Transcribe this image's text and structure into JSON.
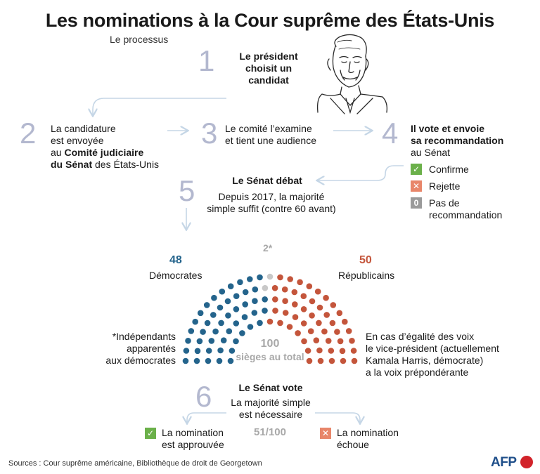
{
  "title": "Les nominations à la Cour suprême des États-Unis",
  "subtitle": "Le processus",
  "steps": {
    "s1": {
      "num": "1",
      "text": "Le président choisit un candidat"
    },
    "s2": {
      "num": "2",
      "line1": "La candidature",
      "line2": "est envoyée",
      "line3_pre": "au ",
      "line3_bold": "Comité judiciaire",
      "line4_bold": "du Sénat",
      "line4_post": " des États-Unis"
    },
    "s3": {
      "num": "3",
      "line1": "Le comité l’examine",
      "line2": "et tient une audience"
    },
    "s4": {
      "num": "4",
      "line1": "Il vote et envoie",
      "line2": "sa recommandation",
      "line3": "au Sénat",
      "options": [
        {
          "icon": "check-icon",
          "symbol": "✓",
          "color": "#6bb04a",
          "label": "Confirme"
        },
        {
          "icon": "cross-icon",
          "symbol": "✕",
          "color": "#e8866a",
          "label": "Rejette"
        },
        {
          "icon": "zero-icon",
          "symbol": "0",
          "color": "#9a9a9a",
          "label": "Pas de recommandation"
        }
      ]
    },
    "s5": {
      "num": "5",
      "heading": "Le Sénat débat",
      "line1": "Depuis 2017, la majorité",
      "line2": "simple suffit (contre 60 avant)"
    },
    "s6": {
      "num": "6",
      "heading": "Le Sénat vote",
      "line1": "La majorité simple",
      "line2": "est nécessaire",
      "threshold": "51/100"
    }
  },
  "senate": {
    "democrats": {
      "count": "48",
      "label": "Démocrates",
      "color": "#24648c",
      "seats": 48
    },
    "independents": {
      "count": "2*",
      "color": "#c8c8c8",
      "seats": 2
    },
    "republicans": {
      "count": "50",
      "label": "Républicains",
      "color": "#c4553b",
      "seats": 50
    },
    "total_num": "100",
    "total_label": "sièges au total",
    "independents_note": [
      "*Indépendants",
      "apparentés",
      "aux démocrates"
    ],
    "tie_note": [
      "En cas d’égalité des voix",
      "le vice-président (actuellement",
      "Kamala Harris, démocrate)",
      "a la voix prépondérante"
    ]
  },
  "outcomes": {
    "approved": {
      "icon": "check-icon",
      "symbol": "✓",
      "color": "#6bb04a",
      "line1": "La nomination",
      "line2": "est approuvée"
    },
    "failed": {
      "icon": "cross-icon",
      "symbol": "✕",
      "color": "#e8866a",
      "line1": "La nomination",
      "line2": "échoue"
    }
  },
  "footer": {
    "sources": "Sources : Cour suprême américaine, Bibliothèque de droit de Georgetown",
    "logo": "AFP"
  }
}
